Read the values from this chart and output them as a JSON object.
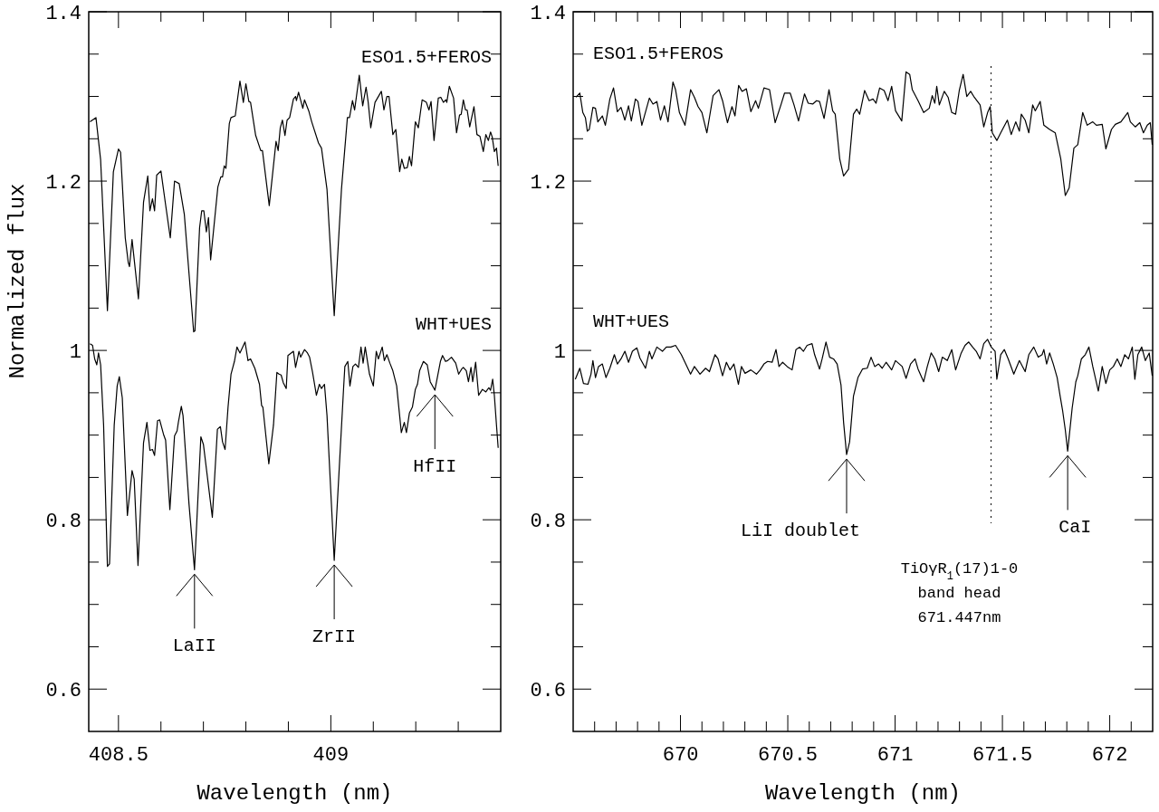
{
  "chart_data": [
    {
      "type": "line",
      "xlabel": "Wavelength (nm)",
      "ylabel": "Normalized flux",
      "xlim": [
        408.43,
        409.4
      ],
      "ylim": [
        0.55,
        1.4
      ],
      "xticks": [
        408.5,
        {
          "value": 408.6,
          "label": null
        },
        {
          "value": 408.7,
          "label": null
        },
        {
          "value": 408.8,
          "label": null
        },
        {
          "value": 408.9,
          "label": null
        },
        409,
        {
          "value": 409.1,
          "label": null
        },
        {
          "value": 409.2,
          "label": null
        },
        {
          "value": 409.3,
          "label": null
        }
      ],
      "yticks": [
        0.6,
        {
          "value": 0.65,
          "label": null
        },
        {
          "value": 0.7,
          "label": null
        },
        {
          "value": 0.75,
          "label": null
        },
        0.8,
        {
          "value": 0.85,
          "label": null
        },
        {
          "value": 0.9,
          "label": null
        },
        {
          "value": 0.95,
          "label": null
        },
        1,
        {
          "value": 1.05,
          "label": null
        },
        {
          "value": 1.1,
          "label": null
        },
        {
          "value": 1.15,
          "label": null
        },
        1.2,
        {
          "value": 1.25,
          "label": null
        },
        {
          "value": 1.3,
          "label": null
        },
        {
          "value": 1.35,
          "label": null
        },
        1.4
      ],
      "series": [
        {
          "name": "ESO1.5+FEROS",
          "color": "#000000",
          "x": [
            408.433,
            408.447,
            408.458,
            408.474,
            408.488,
            408.5,
            408.505,
            408.516,
            408.523,
            408.526,
            408.532,
            408.547,
            408.559,
            408.569,
            408.574,
            408.58,
            408.585,
            408.59,
            408.6,
            408.611,
            408.622,
            408.632,
            408.643,
            408.655,
            408.677,
            408.68,
            408.691,
            408.696,
            408.701,
            408.707,
            408.712,
            408.717,
            408.734,
            408.741,
            408.745,
            408.749,
            408.753,
            408.761,
            408.765,
            408.775,
            408.786,
            408.794,
            408.8,
            408.807,
            408.811,
            408.823,
            408.835,
            408.839,
            408.855,
            408.871,
            408.876,
            408.881,
            408.886,
            408.892,
            408.897,
            408.903,
            408.912,
            408.917,
            408.919,
            408.924,
            408.934,
            408.938,
            408.948,
            408.955,
            408.971,
            408.978,
            408.991,
            409.008,
            409.025,
            409.039,
            409.044,
            409.051,
            409.056,
            409.067,
            409.075,
            409.083,
            409.088,
            409.094,
            409.104,
            409.119,
            409.125,
            409.132,
            409.137,
            409.146,
            409.153,
            409.162,
            409.167,
            409.173,
            409.18,
            409.185,
            409.19,
            409.199,
            409.206,
            409.215,
            409.225,
            409.231,
            409.236,
            409.243,
            409.253,
            409.259,
            409.265,
            409.271,
            409.273,
            409.279,
            409.289,
            409.296,
            409.303,
            409.307,
            409.312,
            409.317,
            409.321,
            409.327,
            409.337,
            409.344,
            409.351,
            409.359,
            409.365,
            409.371,
            409.376,
            409.38,
            409.385,
            409.39,
            409.394
          ],
          "values": [
            1.27,
            1.275,
            1.225,
            1.047,
            1.211,
            1.238,
            1.234,
            1.133,
            1.104,
            1.099,
            1.131,
            1.061,
            1.175,
            1.206,
            1.165,
            1.179,
            1.165,
            1.207,
            1.212,
            1.172,
            1.133,
            1.2,
            1.197,
            1.161,
            1.022,
            1.023,
            1.145,
            1.165,
            1.165,
            1.14,
            1.157,
            1.107,
            1.193,
            1.205,
            1.205,
            1.218,
            1.215,
            1.268,
            1.275,
            1.277,
            1.318,
            1.293,
            1.315,
            1.294,
            1.293,
            1.254,
            1.236,
            1.236,
            1.171,
            1.247,
            1.236,
            1.263,
            1.272,
            1.254,
            1.272,
            1.275,
            1.297,
            1.3,
            1.295,
            1.305,
            1.286,
            1.296,
            1.283,
            1.27,
            1.245,
            1.239,
            1.19,
            1.041,
            1.19,
            1.275,
            1.275,
            1.295,
            1.284,
            1.325,
            1.289,
            1.311,
            1.293,
            1.263,
            1.293,
            1.306,
            1.284,
            1.3,
            1.3,
            1.255,
            1.261,
            1.211,
            1.226,
            1.215,
            1.216,
            1.229,
            1.218,
            1.27,
            1.263,
            1.296,
            1.293,
            1.284,
            1.294,
            1.248,
            1.298,
            1.299,
            1.293,
            1.296,
            1.293,
            1.312,
            1.298,
            1.257,
            1.278,
            1.279,
            1.296,
            1.284,
            1.284,
            1.264,
            1.288,
            1.255,
            1.253,
            1.235,
            1.255,
            1.248,
            1.258,
            1.252,
            1.235,
            1.239,
            1.218
          ]
        },
        {
          "name": "WHT+UES",
          "color": "#000000",
          "x": [
            408.433,
            408.439,
            408.444,
            408.449,
            408.453,
            408.458,
            408.465,
            408.474,
            408.479,
            408.49,
            408.497,
            408.502,
            408.509,
            408.521,
            408.532,
            408.537,
            408.546,
            408.559,
            408.567,
            408.574,
            408.58,
            408.585,
            408.592,
            408.597,
            408.606,
            408.611,
            408.621,
            408.632,
            408.638,
            408.641,
            408.648,
            408.652,
            408.666,
            408.679,
            408.694,
            408.7,
            408.721,
            408.733,
            408.74,
            408.745,
            408.751,
            408.758,
            408.765,
            408.773,
            408.779,
            408.786,
            408.798,
            408.805,
            408.811,
            408.821,
            408.832,
            408.837,
            408.84,
            408.854,
            408.865,
            408.873,
            408.878,
            408.883,
            408.888,
            408.895,
            408.899,
            408.912,
            408.917,
            408.925,
            408.929,
            408.938,
            408.945,
            408.95,
            408.957,
            408.966,
            408.973,
            408.978,
            408.985,
            408.991,
            409.008,
            409.03,
            409.033,
            409.04,
            409.045,
            409.052,
            409.058,
            409.065,
            409.071,
            409.076,
            409.081,
            409.091,
            409.1,
            409.107,
            409.112,
            409.121,
            409.126,
            409.132,
            409.139,
            409.146,
            409.155,
            409.166,
            409.173,
            409.178,
            409.185,
            409.192,
            409.199,
            409.204,
            409.209,
            409.218,
            409.227,
            409.234,
            409.245,
            409.258,
            409.263,
            409.27,
            409.275,
            409.284,
            409.294,
            409.301,
            409.308,
            409.312,
            409.319,
            409.324,
            409.33,
            409.334,
            409.341,
            409.348,
            409.357,
            409.365,
            409.372,
            409.376,
            409.381,
            409.385,
            409.39,
            409.394
          ],
          "values": [
            1.008,
            1.006,
            0.99,
            0.983,
            0.997,
            0.983,
            0.912,
            0.745,
            0.748,
            0.912,
            0.958,
            0.969,
            0.944,
            0.805,
            0.858,
            0.848,
            0.746,
            0.891,
            0.915,
            0.882,
            0.883,
            0.876,
            0.917,
            0.918,
            0.901,
            0.894,
            0.812,
            0.899,
            0.905,
            0.915,
            0.934,
            0.923,
            0.819,
            0.741,
            0.898,
            0.889,
            0.803,
            0.907,
            0.91,
            0.892,
            0.883,
            0.933,
            0.972,
            0.987,
            1.004,
            0.997,
            1.01,
            0.988,
            0.99,
            0.979,
            0.96,
            0.935,
            0.933,
            0.866,
            0.912,
            0.974,
            0.972,
            0.971,
            0.962,
            0.955,
            0.994,
            0.999,
            0.98,
            0.999,
            0.992,
            1.001,
            0.997,
            0.992,
            0.974,
            0.947,
            0.96,
            0.955,
            0.96,
            0.923,
            0.752,
            0.955,
            0.981,
            0.987,
            0.958,
            0.981,
            0.984,
            0.98,
            1.004,
            0.985,
            1.004,
            0.972,
            0.958,
            0.999,
            0.99,
            1.004,
            0.988,
            0.995,
            0.985,
            0.976,
            0.958,
            0.903,
            0.915,
            0.903,
            0.926,
            0.933,
            0.954,
            0.96,
            0.976,
            0.987,
            0.983,
            0.963,
            0.953,
            0.987,
            0.994,
            0.987,
            0.988,
            0.992,
            0.985,
            0.972,
            0.978,
            0.98,
            0.976,
            0.963,
            0.98,
            0.963,
            0.986,
            0.947,
            0.954,
            0.951,
            0.956,
            0.953,
            0.966,
            0.947,
            0.912,
            0.885
          ]
        }
      ],
      "legend": "top right",
      "annotations": [
        {
          "text": "LaII",
          "x": 408.679,
          "y": 0.741
        },
        {
          "text": "ZrII",
          "x": 409.008,
          "y": 0.752
        },
        {
          "text": "HfII",
          "x": 409.245,
          "y": 0.953
        }
      ]
    },
    {
      "type": "line",
      "xlabel": "Wavelength (nm)",
      "xlim": [
        669.5,
        672.2
      ],
      "ylim": [
        0.55,
        1.4
      ],
      "xticks": [
        {
          "value": 669.6,
          "label": null
        },
        {
          "value": 669.7,
          "label": null
        },
        {
          "value": 669.8,
          "label": null
        },
        {
          "value": 669.9,
          "label": null
        },
        670,
        {
          "value": 670.1,
          "label": null
        },
        {
          "value": 670.2,
          "label": null
        },
        {
          "value": 670.3,
          "label": null
        },
        {
          "value": 670.4,
          "label": null
        },
        670.5,
        {
          "value": 670.6,
          "label": null
        },
        {
          "value": 670.7,
          "label": null
        },
        {
          "value": 670.8,
          "label": null
        },
        {
          "value": 670.9,
          "label": null
        },
        671,
        {
          "value": 671.1,
          "label": null
        },
        {
          "value": 671.2,
          "label": null
        },
        {
          "value": 671.3,
          "label": null
        },
        {
          "value": 671.4,
          "label": null
        },
        671.5,
        {
          "value": 671.6,
          "label": null
        },
        {
          "value": 671.7,
          "label": null
        },
        {
          "value": 671.8,
          "label": null
        },
        {
          "value": 671.9,
          "label": null
        },
        672,
        {
          "value": 672.1,
          "label": null
        }
      ],
      "yticks": [
        0.6,
        {
          "value": 0.65,
          "label": null
        },
        {
          "value": 0.7,
          "label": null
        },
        {
          "value": 0.75,
          "label": null
        },
        0.8,
        {
          "value": 0.85,
          "label": null
        },
        {
          "value": 0.9,
          "label": null
        },
        {
          "value": 0.95,
          "label": null
        },
        1,
        {
          "value": 1.05,
          "label": null
        },
        {
          "value": 1.1,
          "label": null
        },
        {
          "value": 1.15,
          "label": null
        },
        1.2,
        {
          "value": 1.25,
          "label": null
        },
        {
          "value": 1.3,
          "label": null
        },
        {
          "value": 1.35,
          "label": null
        },
        1.4
      ],
      "series": [
        {
          "name": "ESO1.5+FEROS",
          "color": "#000000",
          "x": [
            669.513,
            669.531,
            669.545,
            669.557,
            669.566,
            669.575,
            669.592,
            669.604,
            669.615,
            669.636,
            669.65,
            669.671,
            669.688,
            669.706,
            669.723,
            669.741,
            669.758,
            669.771,
            669.79,
            669.802,
            669.82,
            669.855,
            669.872,
            669.89,
            669.907,
            669.925,
            669.942,
            669.965,
            669.977,
            669.995,
            670.021,
            670.047,
            670.065,
            670.082,
            670.1,
            670.123,
            670.152,
            670.179,
            670.196,
            670.219,
            670.24,
            670.254,
            670.271,
            670.287,
            670.307,
            670.328,
            670.35,
            670.363,
            670.389,
            670.415,
            670.441,
            670.468,
            670.485,
            670.511,
            670.529,
            670.55,
            670.578,
            670.595,
            670.616,
            670.634,
            670.648,
            670.669,
            670.692,
            670.709,
            670.721,
            670.742,
            670.76,
            670.783,
            670.806,
            670.821,
            670.835,
            670.858,
            670.879,
            670.897,
            670.911,
            670.928,
            670.949,
            670.967,
            670.984,
            671.002,
            671.031,
            671.051,
            671.068,
            671.08,
            671.107,
            671.133,
            671.159,
            671.173,
            671.185,
            671.194,
            671.206,
            671.229,
            671.247,
            671.264,
            671.282,
            671.299,
            671.317,
            671.334,
            671.352,
            671.369,
            671.396,
            671.413,
            671.431,
            671.443,
            671.453,
            671.474,
            671.492,
            671.523,
            671.541,
            671.562,
            671.579,
            671.588,
            671.606,
            671.623,
            671.641,
            671.653,
            671.676,
            671.693,
            671.72,
            671.746,
            671.772,
            671.793,
            671.811,
            671.833,
            671.851,
            671.874,
            671.895,
            671.921,
            671.938,
            671.965,
            671.982,
            672.008,
            672.026,
            672.052,
            672.084,
            672.096,
            672.119,
            672.14,
            672.157,
            672.175,
            672.189,
            672.198
          ],
          "values": [
            1.299,
            1.304,
            1.281,
            1.275,
            1.259,
            1.261,
            1.287,
            1.286,
            1.27,
            1.277,
            1.266,
            1.297,
            1.31,
            1.282,
            1.287,
            1.272,
            1.289,
            1.271,
            1.297,
            1.294,
            1.266,
            1.298,
            1.291,
            1.294,
            1.272,
            1.289,
            1.27,
            1.317,
            1.308,
            1.281,
            1.266,
            1.308,
            1.299,
            1.288,
            1.281,
            1.257,
            1.301,
            1.308,
            1.295,
            1.269,
            1.288,
            1.277,
            1.313,
            1.306,
            1.309,
            1.282,
            1.295,
            1.286,
            1.31,
            1.308,
            1.269,
            1.29,
            1.304,
            1.304,
            1.29,
            1.271,
            1.303,
            1.292,
            1.291,
            1.295,
            1.294,
            1.274,
            1.308,
            1.283,
            1.279,
            1.226,
            1.206,
            1.214,
            1.279,
            1.285,
            1.279,
            1.307,
            1.295,
            1.297,
            1.292,
            1.31,
            1.307,
            1.295,
            1.312,
            1.283,
            1.271,
            1.329,
            1.326,
            1.308,
            1.295,
            1.281,
            1.286,
            1.301,
            1.292,
            1.312,
            1.29,
            1.306,
            1.299,
            1.281,
            1.279,
            1.307,
            1.326,
            1.3,
            1.306,
            1.299,
            1.29,
            1.264,
            1.281,
            1.288,
            1.257,
            1.248,
            1.257,
            1.272,
            1.255,
            1.27,
            1.259,
            1.279,
            1.272,
            1.257,
            1.29,
            1.283,
            1.294,
            1.266,
            1.261,
            1.257,
            1.226,
            1.183,
            1.192,
            1.239,
            1.243,
            1.281,
            1.266,
            1.27,
            1.266,
            1.267,
            1.238,
            1.261,
            1.267,
            1.27,
            1.281,
            1.27,
            1.264,
            1.269,
            1.257,
            1.266,
            1.269,
            1.243
          ]
        },
        {
          "name": "WHT+UES",
          "color": "#000000",
          "x": [
            669.51,
            669.531,
            669.548,
            669.569,
            669.583,
            669.592,
            669.604,
            669.618,
            669.636,
            669.653,
            669.671,
            669.692,
            669.706,
            669.723,
            669.741,
            669.758,
            669.776,
            669.797,
            669.811,
            669.837,
            669.855,
            669.867,
            669.89,
            669.916,
            669.934,
            669.955,
            669.977,
            670.004,
            670.021,
            670.047,
            670.065,
            670.091,
            670.117,
            670.135,
            670.161,
            670.175,
            670.196,
            670.214,
            670.231,
            670.249,
            670.27,
            670.284,
            670.301,
            670.328,
            670.354,
            670.371,
            670.389,
            670.406,
            670.427,
            670.445,
            670.459,
            670.476,
            670.497,
            670.52,
            670.538,
            670.555,
            670.573,
            670.59,
            670.613,
            670.625,
            670.648,
            670.66,
            670.678,
            670.695,
            670.713,
            670.73,
            670.748,
            670.76,
            670.774,
            670.788,
            670.806,
            670.827,
            670.848,
            670.87,
            670.888,
            670.905,
            670.923,
            670.94,
            670.958,
            670.984,
            671.002,
            671.033,
            671.051,
            671.072,
            671.093,
            671.107,
            671.133,
            671.15,
            671.168,
            671.185,
            671.203,
            671.22,
            671.243,
            671.264,
            671.282,
            671.308,
            671.326,
            671.343,
            671.361,
            671.378,
            671.396,
            671.413,
            671.431,
            671.448,
            671.466,
            671.474,
            671.492,
            671.509,
            671.527,
            671.553,
            671.579,
            671.606,
            671.623,
            671.646,
            671.667,
            671.685,
            671.693,
            671.706,
            671.72,
            671.737,
            671.755,
            671.769,
            671.781,
            671.793,
            671.804,
            671.825,
            671.842,
            671.851,
            671.868,
            671.886,
            671.903,
            671.921,
            671.947,
            671.965,
            671.982,
            672,
            672.017,
            672.035,
            672.052,
            672.07,
            672.087,
            672.105,
            672.117,
            672.131,
            672.149,
            672.166,
            672.184,
            672.198
          ],
          "values": [
            0.966,
            0.979,
            0.961,
            0.96,
            0.972,
            0.988,
            0.968,
            0.981,
            0.984,
            0.968,
            0.979,
            0.995,
            0.984,
            0.99,
            0.999,
            0.986,
            0.999,
            1.003,
            0.991,
            0.979,
            0.999,
            0.99,
            1.004,
            0.999,
            1.004,
            1.004,
            1.006,
            0.995,
            0.986,
            0.972,
            0.981,
            0.972,
            0.979,
            0.975,
            0.995,
            0.99,
            0.97,
            0.986,
            0.977,
            0.984,
            0.96,
            0.981,
            0.973,
            0.977,
            0.972,
            0.977,
            0.984,
            0.987,
            0.986,
            1.001,
            0.981,
            0.986,
            0.981,
            0.977,
            1.001,
            1.004,
            0.999,
            1.006,
            1.008,
            0.995,
            0.978,
            0.99,
            1.01,
            0.992,
            0.99,
            0.984,
            0.959,
            0.915,
            0.877,
            0.892,
            0.946,
            0.968,
            0.978,
            0.979,
            0.992,
            0.981,
            0.984,
            0.979,
            0.986,
            0.977,
            0.988,
            0.981,
            0.967,
            0.984,
            0.99,
            0.978,
            0.963,
            0.981,
            0.997,
            0.99,
            0.975,
            0.992,
            0.988,
            1.001,
            0.977,
            0.997,
            1.006,
            1.01,
            1.004,
            0.999,
            0.99,
            1.008,
            1.013,
            1.004,
            0.999,
            0.966,
            0.995,
            1.001,
            0.99,
            0.972,
            0.988,
            0.975,
            0.995,
            1.004,
            0.992,
            0.995,
            1.001,
            0.984,
            0.997,
            0.984,
            0.968,
            0.946,
            0.928,
            0.906,
            0.881,
            0.932,
            0.963,
            0.97,
            0.99,
            0.995,
            1.004,
            0.981,
            0.952,
            0.981,
            0.961,
            0.977,
            0.981,
            0.99,
            0.981,
            0.995,
            0.99,
            1.004,
            0.966,
            0.995,
            1.004,
            0.988,
            0.997,
            0.97
          ]
        }
      ],
      "ref_lines": [
        {
          "axis": "x",
          "value": 671.447,
          "label": "TiOγR$_{1}$(17)1-0\nband head\n671.447nm",
          "line_style": "dotted"
        }
      ],
      "legend": "top left",
      "annotations": [
        {
          "text": "LiI doublet",
          "x": 670.774,
          "y": 0.877
        },
        {
          "text": "CaI",
          "x": 671.804,
          "y": 0.881
        }
      ]
    }
  ]
}
